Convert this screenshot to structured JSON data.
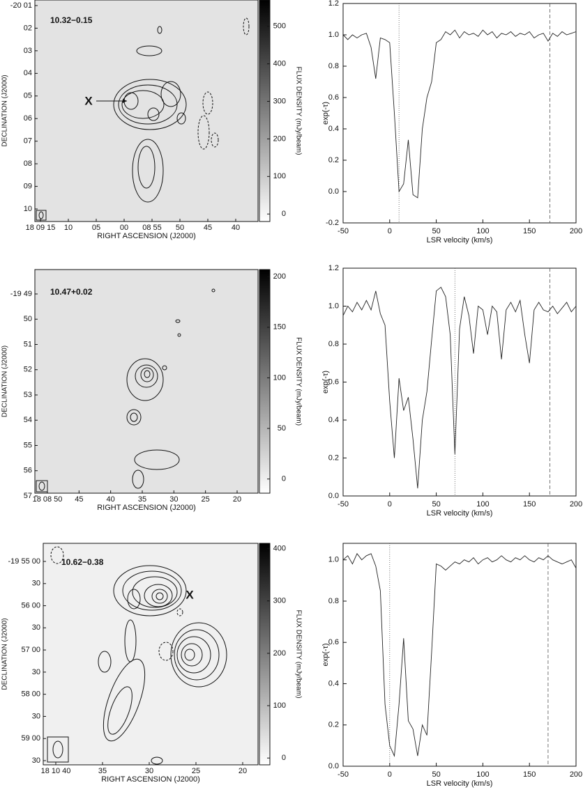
{
  "chart_data": [
    {
      "type": "image",
      "title": "10.32−0.15",
      "xlabel": "RIGHT ASCENSION (J2000)",
      "ylabel": "DECLINATION (J2000)",
      "xtick_labels": [
        "18 09 15",
        "10",
        "05",
        "00",
        "08 55",
        "50",
        "45",
        "40"
      ],
      "ytick_labels": [
        "-20 01",
        "02",
        "03",
        "04",
        "05",
        "06",
        "07",
        "08",
        "09",
        "10"
      ],
      "colorbar": {
        "label": "FLUX DENSITY (mJy/beam)",
        "lim": [
          -20,
          570
        ],
        "ticks": [
          0,
          100,
          200,
          300,
          400,
          500
        ]
      },
      "annotations": [
        "X"
      ]
    },
    {
      "type": "line",
      "xlabel": "LSR velocity (km/s)",
      "ylabel": "exp(-τ)",
      "x": [
        -50,
        -45,
        -40,
        -35,
        -30,
        -25,
        -20,
        -15,
        -10,
        -5,
        0,
        5,
        10,
        15,
        20,
        25,
        30,
        35,
        40,
        45,
        50,
        55,
        60,
        65,
        70,
        75,
        80,
        85,
        90,
        95,
        100,
        105,
        110,
        115,
        120,
        125,
        130,
        135,
        140,
        145,
        150,
        155,
        160,
        165,
        170,
        175,
        180,
        185,
        190,
        195,
        200
      ],
      "values": [
        1.0,
        0.97,
        1.0,
        0.98,
        1.0,
        1.01,
        0.92,
        0.72,
        0.98,
        0.97,
        0.95,
        0.5,
        0.0,
        0.05,
        0.33,
        -0.02,
        -0.04,
        0.4,
        0.6,
        0.7,
        0.95,
        0.97,
        1.02,
        1.0,
        1.03,
        0.98,
        1.02,
        1.0,
        1.01,
        0.99,
        1.03,
        1.0,
        1.02,
        0.98,
        1.01,
        1.0,
        1.02,
        0.99,
        1.01,
        1.0,
        1.02,
        0.98,
        1.0,
        1.01,
        0.96,
        1.01,
        0.99,
        1.02,
        1.0,
        1.01,
        1.02
      ],
      "color": "#222",
      "xlim": [
        -50,
        200
      ],
      "ylim": [
        -0.2,
        1.2
      ],
      "xticks": [
        -50,
        0,
        50,
        100,
        150,
        200
      ],
      "yticks": [
        -0.2,
        {
          "value": 0,
          "label": "0.0"
        },
        0.2,
        0.4,
        0.6,
        0.8,
        {
          "value": 1,
          "label": "1.0"
        },
        1.2
      ],
      "vlines": [
        {
          "value": 10,
          "style": "dotted"
        },
        {
          "value": 172,
          "style": "dashed"
        }
      ]
    },
    {
      "type": "image",
      "title": "10.47+0.02",
      "xlabel": "RIGHT ASCENSION (J2000)",
      "ylabel": "DECLINATION (J2000)",
      "xtick_labels": [
        "18 08 50",
        "45",
        "40",
        "35",
        "30",
        "25",
        "20"
      ],
      "ytick_labels": [
        "-19 49",
        "50",
        "51",
        "52",
        "53",
        "54",
        "55",
        "56",
        "57"
      ],
      "colorbar": {
        "label": "FLUX DENSITY (mJy/beam)",
        "lim": [
          -14,
          207
        ],
        "ticks": [
          0,
          50,
          100,
          150,
          200
        ]
      },
      "annotations": []
    },
    {
      "type": "line",
      "xlabel": "LSR velocity (km/s)",
      "ylabel": "exp(-τ)",
      "x": [
        -50,
        -45,
        -40,
        -35,
        -30,
        -25,
        -20,
        -15,
        -10,
        -5,
        0,
        5,
        10,
        15,
        20,
        25,
        30,
        35,
        40,
        45,
        50,
        55,
        60,
        65,
        70,
        75,
        80,
        85,
        90,
        95,
        100,
        105,
        110,
        115,
        120,
        125,
        130,
        135,
        140,
        145,
        150,
        155,
        160,
        165,
        170,
        175,
        180,
        185,
        190,
        195,
        200
      ],
      "values": [
        0.95,
        1.0,
        0.97,
        1.02,
        0.98,
        1.03,
        0.98,
        1.08,
        0.96,
        0.9,
        0.5,
        0.2,
        0.62,
        0.45,
        0.52,
        0.3,
        0.04,
        0.4,
        0.55,
        0.82,
        1.08,
        1.1,
        1.05,
        0.85,
        0.22,
        0.88,
        1.05,
        0.95,
        0.75,
        1.0,
        0.98,
        0.85,
        1.0,
        0.97,
        0.72,
        0.98,
        1.02,
        0.97,
        1.03,
        0.85,
        0.7,
        0.98,
        1.02,
        0.98,
        0.97,
        1.0,
        0.96,
        0.99,
        1.02,
        0.97,
        1.0
      ],
      "color": "#222",
      "xlim": [
        -50,
        200
      ],
      "ylim": [
        0,
        1.2
      ],
      "xticks": [
        -50,
        0,
        50,
        100,
        150,
        200
      ],
      "yticks": [
        {
          "value": 0,
          "label": "0.0"
        },
        0.2,
        0.4,
        0.6,
        0.8,
        {
          "value": 1,
          "label": "1.0"
        },
        1.2
      ],
      "vlines": [
        {
          "value": 70,
          "style": "dotted"
        },
        {
          "value": 172,
          "style": "dashed"
        }
      ]
    },
    {
      "type": "image",
      "title": "10.62−0.38",
      "xlabel": "RIGHT ASCENSION (J2000)",
      "ylabel": "DECLINATION (J2000)",
      "xtick_labels": [
        "18 10 40",
        "35",
        "30",
        "25",
        "20"
      ],
      "ytick_labels": [
        "-19 55 00",
        "30",
        "56 00",
        "30",
        "57 00",
        "30",
        "58 00",
        "30",
        "59 00",
        "30"
      ],
      "colorbar": {
        "label": "FLUX DENSITY (mJy/beam)",
        "lim": [
          -13,
          410
        ],
        "ticks": [
          0,
          100,
          200,
          300,
          400
        ]
      },
      "annotations": [
        "X"
      ]
    },
    {
      "type": "line",
      "xlabel": "LSR velocity (km/s)",
      "ylabel": "exp(-τ)",
      "x": [
        -50,
        -45,
        -40,
        -35,
        -30,
        -25,
        -20,
        -15,
        -10,
        -5,
        0,
        5,
        10,
        15,
        20,
        25,
        30,
        35,
        40,
        45,
        50,
        55,
        60,
        65,
        70,
        75,
        80,
        85,
        90,
        95,
        100,
        105,
        110,
        115,
        120,
        125,
        130,
        135,
        140,
        145,
        150,
        155,
        160,
        165,
        170,
        175,
        180,
        185,
        190,
        195,
        200
      ],
      "values": [
        1.0,
        1.02,
        0.98,
        1.03,
        1.0,
        1.02,
        1.03,
        0.97,
        0.85,
        0.3,
        0.1,
        0.05,
        0.3,
        0.62,
        0.22,
        0.18,
        0.05,
        0.2,
        0.15,
        0.55,
        0.98,
        0.97,
        0.95,
        0.97,
        0.99,
        0.98,
        1.0,
        0.99,
        1.01,
        0.98,
        1.0,
        1.01,
        0.99,
        1.0,
        1.02,
        1.0,
        0.99,
        1.01,
        1.0,
        1.02,
        1.0,
        0.99,
        1.01,
        1.0,
        1.02,
        1.0,
        0.99,
        0.98,
        0.99,
        1.0,
        0.96
      ],
      "color": "#222",
      "xlim": [
        -50,
        200
      ],
      "ylim": [
        0,
        1.08
      ],
      "xticks": [
        -50,
        0,
        50,
        100,
        150,
        200
      ],
      "yticks": [
        {
          "value": 0,
          "label": "0.0"
        },
        0.2,
        0.4,
        0.6,
        0.8,
        {
          "value": 1,
          "label": "1.0"
        }
      ],
      "vlines": [
        {
          "value": 0,
          "style": "dotted"
        },
        {
          "value": 170,
          "style": "dashed"
        }
      ]
    }
  ]
}
